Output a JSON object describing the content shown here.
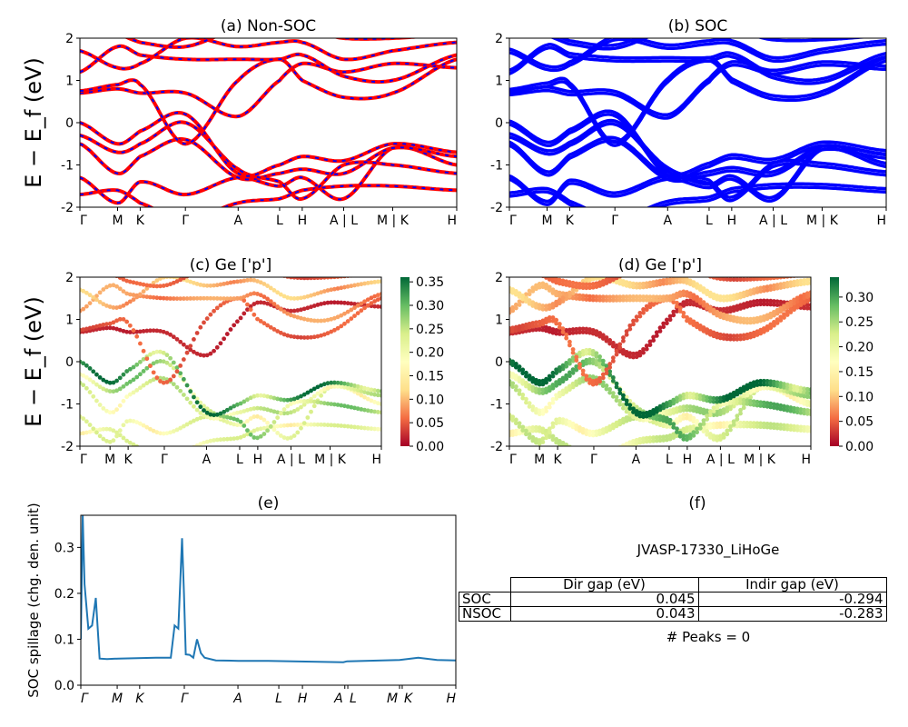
{
  "chart_data": [
    {
      "panel": "a",
      "title": "(a) Non-SOC",
      "type": "line",
      "ylabel": "E − E_f (eV)",
      "ylim": [
        -2,
        2
      ],
      "yticks": [
        -2,
        -1,
        0,
        1,
        2
      ],
      "xticks": [
        "Γ",
        "M",
        "K",
        "Γ",
        "A",
        "L",
        "H",
        "A | L",
        "M | K",
        "H"
      ],
      "colors": [
        "#ff0000",
        "#0000ff"
      ],
      "style": "red solid with blue dashes"
    },
    {
      "panel": "b",
      "title": "(b) SOC",
      "type": "line",
      "ylim": [
        -2,
        2
      ],
      "yticks": [
        -2,
        -1,
        0,
        1,
        2
      ],
      "xticks": [
        "Γ",
        "M",
        "K",
        "Γ",
        "A",
        "L",
        "H",
        "A | L",
        "M | K",
        "H"
      ],
      "colors": [
        "#0000ff"
      ]
    },
    {
      "panel": "c",
      "title": "(c)  Ge ['p']",
      "type": "scatter",
      "ylabel": "E − E_f (eV)",
      "ylim": [
        -2,
        2
      ],
      "yticks": [
        -2,
        -1,
        0,
        1,
        2
      ],
      "xticks": [
        "Γ",
        "M",
        "K",
        "Γ",
        "A",
        "L",
        "H",
        "A | L",
        "M | K",
        "H"
      ],
      "colormap": "RdYlGn",
      "colorbar_ticks": [
        "0.00",
        "0.05",
        "0.10",
        "0.15",
        "0.20",
        "0.25",
        "0.30",
        "0.35"
      ],
      "colorbar_max": 0.36
    },
    {
      "panel": "d",
      "title": "(d) Ge ['p']",
      "type": "scatter",
      "ylim": [
        -2,
        2
      ],
      "yticks": [
        -2,
        -1,
        0,
        1,
        2
      ],
      "xticks": [
        "Γ",
        "M",
        "K",
        "Γ",
        "A",
        "L",
        "H",
        "A | L",
        "M | K",
        "H"
      ],
      "colormap": "RdYlGn",
      "colorbar_ticks": [
        "0.00",
        "0.05",
        "0.10",
        "0.15",
        "0.20",
        "0.25",
        "0.30"
      ],
      "colorbar_max": 0.34
    },
    {
      "panel": "e",
      "title": "(e)",
      "type": "line",
      "ylabel": "SOC spillage (chg. den. unit)",
      "ylim": [
        0,
        0.37
      ],
      "yticks": [
        "0.0",
        "0.1",
        "0.2",
        "0.3"
      ],
      "xticks": [
        "Γ",
        "M",
        "K",
        "Γ",
        "A",
        "L",
        "H",
        "A",
        "L",
        "M",
        "K",
        "H"
      ],
      "color": "#1f77b4",
      "series": {
        "k": [
          0,
          0.005,
          0.01,
          0.02,
          0.03,
          0.04,
          0.05,
          0.07,
          0.1,
          0.2,
          0.24,
          0.25,
          0.26,
          0.27,
          0.275,
          0.28,
          0.29,
          0.3,
          0.31,
          0.32,
          0.33,
          0.36,
          0.42,
          0.5,
          0.7,
          0.71,
          0.85,
          0.9,
          0.95,
          1.0
        ],
        "v": [
          0.1,
          0.37,
          0.22,
          0.123,
          0.13,
          0.19,
          0.058,
          0.057,
          0.058,
          0.06,
          0.06,
          0.13,
          0.123,
          0.32,
          0.2,
          0.067,
          0.066,
          0.06,
          0.1,
          0.07,
          0.06,
          0.054,
          0.053,
          0.053,
          0.05,
          0.052,
          0.055,
          0.06,
          0.055,
          0.054
        ]
      }
    }
  ],
  "bands": {
    "energies": [
      [
        -1.7,
        -1.6,
        -1.9,
        -2.3,
        -1.9,
        -1.8,
        -1.6,
        -1.5,
        -1.5,
        -1.6
      ],
      [
        -1.3,
        -1.9,
        -1.4,
        -1.7,
        -1.3,
        -1.5,
        -1.3,
        -1.8,
        -0.6,
        -1.0
      ],
      [
        -0.5,
        -1.2,
        -0.8,
        -0.4,
        -1.3,
        -1.2,
        -1.1,
        -1.2,
        -0.6,
        -0.8
      ],
      [
        -0.3,
        -0.7,
        -0.5,
        0.0,
        -1.1,
        -1.4,
        -1.8,
        -1.0,
        -1.0,
        -1.2
      ],
      [
        0.0,
        -0.5,
        -0.2,
        0.2,
        -1.2,
        -1.0,
        -0.8,
        -0.9,
        -0.5,
        -0.7
      ],
      [
        0.7,
        0.8,
        0.7,
        0.7,
        0.15,
        1.0,
        1.4,
        1.2,
        1.4,
        1.3
      ],
      [
        0.75,
        0.9,
        0.9,
        -0.5,
        1.0,
        1.5,
        1.0,
        0.6,
        0.7,
        1.5
      ],
      [
        1.2,
        1.8,
        1.6,
        1.5,
        1.5,
        1.5,
        1.6,
        1.1,
        1.0,
        1.6
      ],
      [
        1.7,
        1.3,
        1.4,
        2.0,
        1.8,
        1.9,
        1.9,
        1.5,
        1.7,
        1.9
      ],
      [
        2.2,
        2.1,
        1.9,
        1.8,
        2.2,
        2.1,
        2.2,
        2.0,
        2.0,
        2.1
      ]
    ],
    "weights": [
      0.2,
      0.2,
      0.22,
      0.25,
      0.3,
      0.02,
      0.05,
      0.08,
      0.1,
      0.05
    ]
  },
  "info": {
    "title": "(f)",
    "material": "JVASP-17330_LiHoGe",
    "peaks": "# Peaks = 0",
    "table": {
      "headers": [
        "",
        "Dir gap (eV)",
        "Indir gap (eV)"
      ],
      "rows": [
        [
          "SOC",
          "0.045",
          "-0.294"
        ],
        [
          "NSOC",
          "0.043",
          "-0.283"
        ]
      ]
    }
  }
}
